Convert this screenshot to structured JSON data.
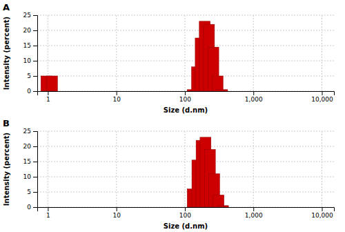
{
  "chart_data": [
    {
      "type": "bar",
      "title": "A",
      "x": [
        0.95,
        1.15,
        130,
        150,
        170,
        195,
        225,
        260,
        300,
        350
      ],
      "values": [
        5.0,
        5.0,
        0.5,
        8.0,
        17.5,
        23.0,
        22.0,
        14.5,
        5.0,
        0.5
      ],
      "color": "#cc0000",
      "xlabel": "Size (d.nm)",
      "ylabel": "Intensity (percent)",
      "log": "x",
      "xlim": [
        0.7,
        15000
      ],
      "xticks": [
        1,
        10,
        100,
        {
          "value": 1000,
          "label": "1,000"
        },
        {
          "value": 10000,
          "label": "10,000"
        }
      ],
      "ylim": [
        0,
        25
      ],
      "yticks": [
        0,
        5,
        10,
        15,
        20,
        25
      ],
      "grid": true
    },
    {
      "type": "bar",
      "title": "B",
      "x": [
        130,
        152,
        175,
        200,
        232,
        268,
        310,
        360
      ],
      "values": [
        6.0,
        15.5,
        22.0,
        23.0,
        19.0,
        11.0,
        4.0,
        0.5
      ],
      "color": "#cc0000",
      "xlabel": "Size (d.nm)",
      "ylabel": "Intensity (percent)",
      "log": "x",
      "xlim": [
        0.7,
        15000
      ],
      "xticks": [
        1,
        10,
        100,
        {
          "value": 1000,
          "label": "1,000"
        },
        {
          "value": 10000,
          "label": "10,000"
        }
      ],
      "ylim": [
        0,
        25
      ],
      "yticks": [
        0,
        5,
        10,
        15,
        20,
        25
      ],
      "grid": true
    }
  ]
}
